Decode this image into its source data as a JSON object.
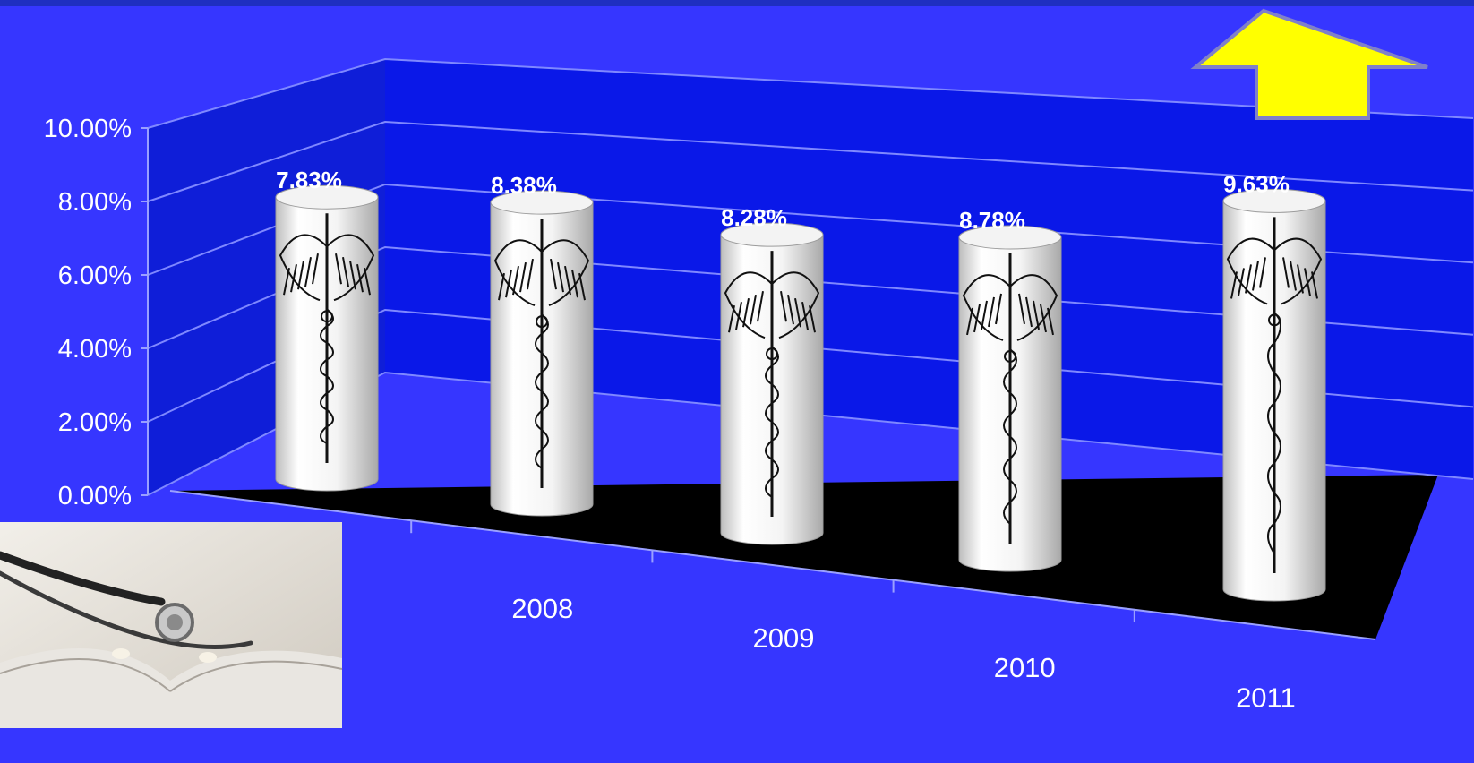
{
  "colors": {
    "background": "#3636ff",
    "back_wall": "#0a18e8",
    "side_wall": "#0f1ed8",
    "floor": "#000000",
    "grid_line": "#7f88ff",
    "cylinder_body": "#ffffff",
    "caduceus_ink": "#111111",
    "arrow_fill": "#ffff00",
    "arrow_stroke": "#8080c8",
    "axis_text": "#ffffff"
  },
  "decorations": {
    "up_arrow_icon": "up-arrow-icon",
    "stethoscope_photo": "stethoscope-on-book-photo",
    "bar_texture": "caduceus-icon"
  },
  "chart_data": {
    "type": "bar",
    "style": "3d-cylinder",
    "categories": [
      "",
      "2008",
      "2009",
      "2010",
      "2011"
    ],
    "values": [
      7.83,
      8.38,
      8.28,
      8.78,
      9.63
    ],
    "data_labels": [
      "7.83%",
      "8.38%",
      "8.28%",
      "8.78%",
      "9.63%"
    ],
    "ylim": [
      0,
      10
    ],
    "y_ticks": [
      "0.00%",
      "2.00%",
      "4.00%",
      "6.00%",
      "8.00%",
      "10.00%"
    ],
    "grid": true,
    "legend": "none",
    "title": "",
    "xlabel": "",
    "ylabel": ""
  }
}
